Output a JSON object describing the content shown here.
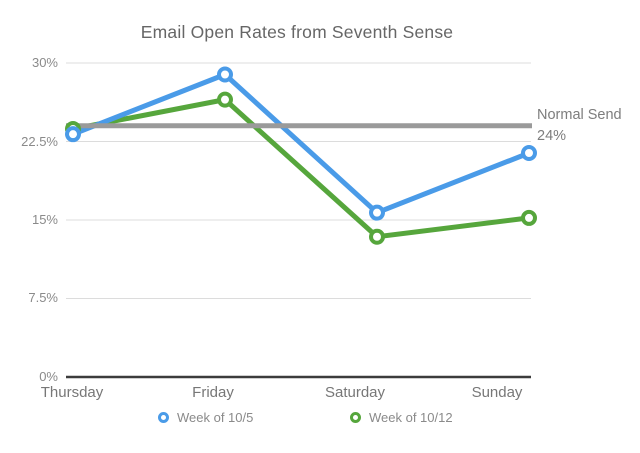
{
  "chart_data": {
    "type": "line",
    "title": "Email Open Rates from Seventh Sense",
    "categories": [
      "Thursday",
      "Friday",
      "Saturday",
      "Sunday"
    ],
    "series": [
      {
        "name": "Week of 10/5",
        "color": "#4A9BE8",
        "values": [
          23.2,
          28.9,
          15.7,
          21.4
        ]
      },
      {
        "name": "Week of 10/12",
        "color": "#56A63C",
        "values": [
          23.7,
          26.5,
          13.4,
          15.2
        ]
      }
    ],
    "reference_line": {
      "label": "Normal Send",
      "value_label": "24%",
      "value": 24,
      "color": "#9A9A9A"
    },
    "xlabel": "",
    "ylabel": "",
    "ylim": [
      0,
      30
    ],
    "yticks": [
      0,
      7.5,
      15,
      22.5,
      30
    ],
    "ytick_labels": [
      "0%",
      "7.5%",
      "15%",
      "22.5%",
      "30%"
    ],
    "grid": true,
    "legend_position": "bottom",
    "colors": {
      "grid": "#DCDCDC",
      "axis": "#3C3C3C",
      "title_text": "#666666",
      "axis_text": "#8A8A8A",
      "legend_text": "#8A8A8A",
      "background": "#FFFFFF"
    }
  }
}
